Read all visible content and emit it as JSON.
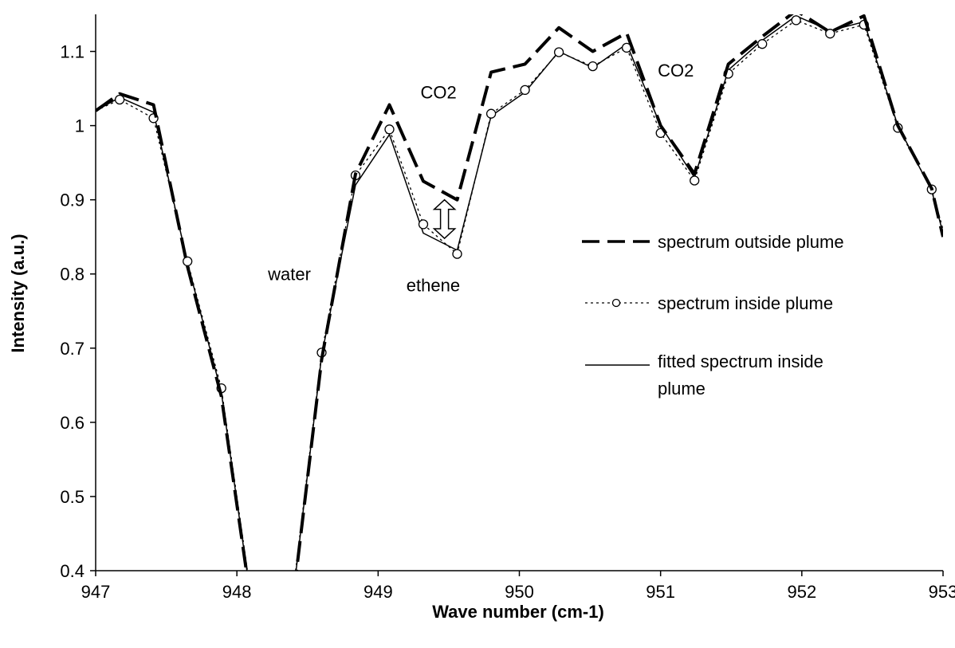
{
  "chart_data": {
    "type": "line",
    "xlabel": "Wave number (cm-1)",
    "ylabel": "Intensity (a.u.)",
    "xlim": [
      947,
      953
    ],
    "ylim": [
      0.4,
      1.15
    ],
    "xticks": [
      "947",
      "948",
      "949",
      "950",
      "951",
      "952",
      "953"
    ],
    "yticks": [
      "0.4",
      "0.5",
      "0.6",
      "0.7",
      "0.8",
      "0.9",
      "1",
      "1.1"
    ],
    "grid": false,
    "legend_position": "right",
    "series": [
      {
        "name": "spectrum outside plume",
        "style": "long-dash",
        "color": "#000000",
        "x": [
          947.0,
          947.17,
          947.41,
          947.65,
          947.89,
          948.12,
          948.36,
          948.6,
          948.84,
          949.08,
          949.32,
          949.56,
          949.8,
          950.04,
          950.28,
          950.52,
          950.76,
          951.0,
          951.24,
          951.48,
          951.72,
          951.96,
          952.2,
          952.44,
          952.68,
          952.92,
          953.0
        ],
        "y": [
          1.02,
          1.043,
          1.028,
          0.81,
          0.635,
          0.33,
          0.3,
          0.685,
          0.935,
          1.028,
          0.925,
          0.9,
          1.072,
          1.083,
          1.132,
          1.1,
          1.125,
          1.0,
          0.935,
          1.083,
          1.12,
          1.155,
          1.126,
          1.148,
          1.0,
          0.915,
          0.85
        ]
      },
      {
        "name": "spectrum inside plume",
        "style": "dotted-circle",
        "color": "#000000",
        "x": [
          947.0,
          947.17,
          947.41,
          947.65,
          947.89,
          948.12,
          948.36,
          948.6,
          948.84,
          949.08,
          949.32,
          949.56,
          949.8,
          950.04,
          950.28,
          950.52,
          950.76,
          951.0,
          951.24,
          951.48,
          951.72,
          951.96,
          952.2,
          952.44,
          952.68,
          952.92,
          953.0
        ],
        "y": [
          1.02,
          1.035,
          1.01,
          0.817,
          0.646,
          0.34,
          0.31,
          0.694,
          0.933,
          0.995,
          0.867,
          0.827,
          1.016,
          1.048,
          1.099,
          1.08,
          1.105,
          0.99,
          0.926,
          1.07,
          1.11,
          1.142,
          1.124,
          1.136,
          0.997,
          0.914,
          0.86
        ]
      },
      {
        "name": "fitted spectrum inside plume",
        "style": "solid",
        "color": "#000000",
        "x": [
          947.0,
          947.17,
          947.41,
          947.65,
          947.89,
          948.12,
          948.36,
          948.6,
          948.84,
          949.08,
          949.32,
          949.56,
          949.8,
          950.04,
          950.28,
          950.52,
          950.76,
          951.0,
          951.24,
          951.48,
          951.72,
          951.96,
          952.2,
          952.44,
          952.68,
          952.92,
          953.0
        ],
        "y": [
          1.02,
          1.038,
          1.018,
          0.815,
          0.64,
          0.335,
          0.305,
          0.69,
          0.92,
          0.988,
          0.855,
          0.832,
          1.013,
          1.045,
          1.1,
          1.078,
          1.11,
          1.0,
          0.93,
          1.075,
          1.115,
          1.148,
          1.128,
          1.14,
          1.0,
          0.912,
          0.855
        ]
      }
    ],
    "annotations": [
      {
        "text": "water",
        "x": 948.22,
        "y": 0.8
      },
      {
        "text": "ethene",
        "x": 949.2,
        "y": 0.785
      },
      {
        "text": "CO2",
        "x": 949.3,
        "y": 1.045
      },
      {
        "text": "CO2",
        "x": 950.98,
        "y": 1.075
      }
    ],
    "arrow": {
      "x": 949.47,
      "y_top": 0.9,
      "y_bottom": 0.848
    }
  }
}
